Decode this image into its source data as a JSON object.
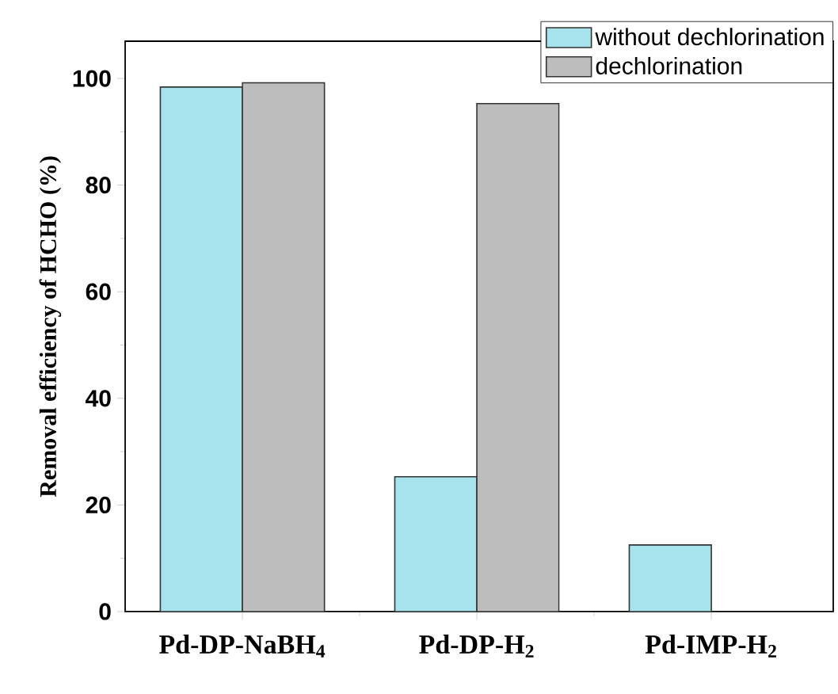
{
  "chart_data": {
    "type": "bar",
    "ylabel": "Removal efficiency of HCHO (%)",
    "categories": [
      "Pd-DP-NaBH$_{4}$",
      "Pd-DP-H$_{2}$",
      "Pd-IMP-H$_{2}$"
    ],
    "series": [
      {
        "name": "without dechlorination",
        "color": "#a6e3ec",
        "values": [
          98.4,
          25.3,
          12.5
        ]
      },
      {
        "name": "dechlorination",
        "color": "#bdbdbd",
        "values": [
          99.2,
          95.3,
          null
        ]
      }
    ],
    "ylim": [
      0,
      107
    ],
    "yticks": [
      0,
      20,
      40,
      60,
      80,
      100
    ],
    "legend": "top right"
  }
}
